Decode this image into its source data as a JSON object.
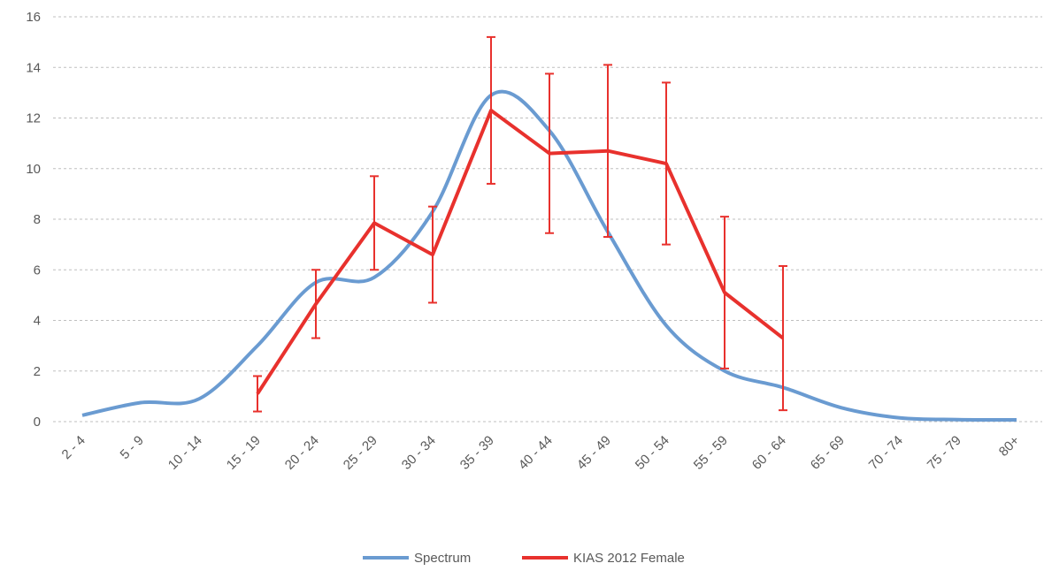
{
  "chart_data": {
    "type": "line",
    "categories": [
      "2 - 4",
      "5 - 9",
      "10 - 14",
      "15 - 19",
      "20 - 24",
      "25 - 29",
      "30 - 34",
      "35 - 39",
      "40 - 44",
      "45 - 49",
      "50 - 54",
      "55 - 59",
      "60 - 64",
      "65 - 69",
      "70 - 74",
      "75 - 79",
      "80+"
    ],
    "series": [
      {
        "name": "Spectrum",
        "color": "#6a9bd1",
        "smooth": true,
        "values": [
          0.25,
          0.75,
          0.9,
          3.0,
          5.5,
          5.7,
          8.3,
          12.9,
          11.5,
          7.5,
          3.8,
          2.0,
          1.35,
          0.55,
          0.15,
          0.08,
          0.07
        ]
      },
      {
        "name": "KIAS 2012 Female",
        "color": "#e8312d",
        "smooth": false,
        "values": [
          null,
          null,
          null,
          1.1,
          4.65,
          7.85,
          6.6,
          12.3,
          10.6,
          10.7,
          10.2,
          5.1,
          3.3,
          null,
          null,
          null,
          null
        ],
        "errors": [
          null,
          null,
          null,
          0.7,
          1.35,
          1.85,
          1.9,
          2.9,
          3.15,
          3.4,
          3.2,
          3.0,
          2.85,
          null,
          null,
          null,
          null
        ]
      }
    ],
    "ylim": [
      0,
      16
    ],
    "yticks": [
      0,
      2,
      4,
      6,
      8,
      10,
      12,
      14,
      16
    ],
    "grid": true,
    "legend": "bottom"
  }
}
